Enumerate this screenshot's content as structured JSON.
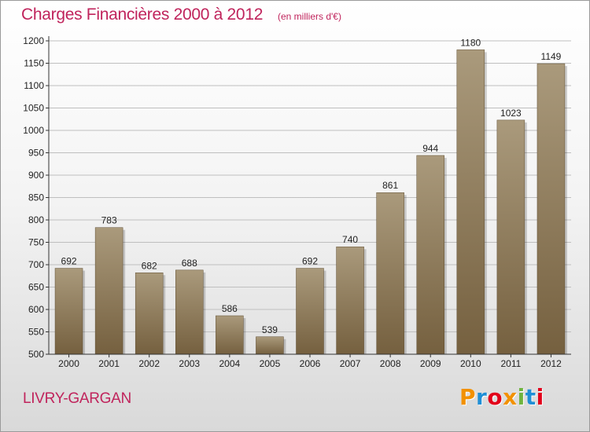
{
  "header": {
    "title": "Charges Financières 2000 à 2012",
    "unit_note": "(en milliers d'€)"
  },
  "footer": {
    "place_name": "LIVRY-GARGAN",
    "brand": "Proxiti",
    "brand_colors": [
      "#f29100",
      "#1f8fd6",
      "#e2001a",
      "#f29100",
      "#6fb43f",
      "#1f8fd6",
      "#e2001a"
    ]
  },
  "colors": {
    "bar_top": "#aa9a7c",
    "bar_bottom": "#75603f",
    "axis": "#333333",
    "grid": "#bfbfbf",
    "title": "#c0245c"
  },
  "chart_data": {
    "type": "bar",
    "title": "Charges Financières 2000 à 2012",
    "xlabel": "",
    "ylabel": "",
    "categories": [
      "2000",
      "2001",
      "2002",
      "2003",
      "2004",
      "2005",
      "2006",
      "2007",
      "2008",
      "2009",
      "2010",
      "2011",
      "2012"
    ],
    "values": [
      692,
      783,
      682,
      688,
      586,
      539,
      692,
      740,
      861,
      944,
      1180,
      1023,
      1149
    ],
    "ylim": [
      500,
      1200
    ],
    "yticks": [
      500,
      550,
      600,
      650,
      700,
      750,
      800,
      850,
      900,
      950,
      1000,
      1050,
      1100,
      1150,
      1200
    ],
    "grid": true,
    "legend": "none",
    "data_labels": true
  }
}
